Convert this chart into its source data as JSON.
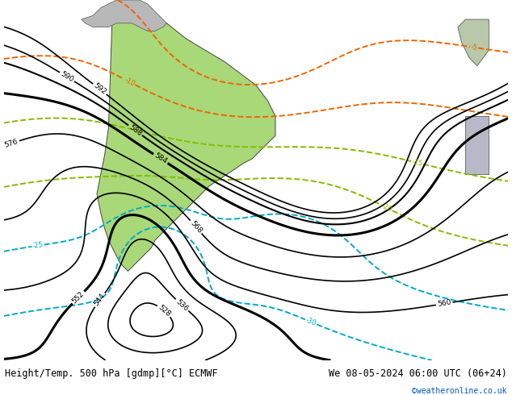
{
  "title_left": "Height/Temp. 500 hPa [gdmp][°C] ECMWF",
  "title_right": "We 08-05-2024 06:00 UTC (06+24)",
  "copyright": "©weatheronline.co.uk",
  "bg_color": "#c8cfd8",
  "ocean_color": "#c8cfd8",
  "land_color": "#b8b8b8",
  "sa_color": "#a8d878",
  "fig_width": 6.34,
  "fig_height": 4.9,
  "dpi": 100,
  "bottom_bar_color": "#e0e0e0",
  "title_fontsize": 8.5,
  "copyright_color": "#0055cc",
  "xmin": -105,
  "xmax": 25,
  "ymin": -78,
  "ymax": 15
}
